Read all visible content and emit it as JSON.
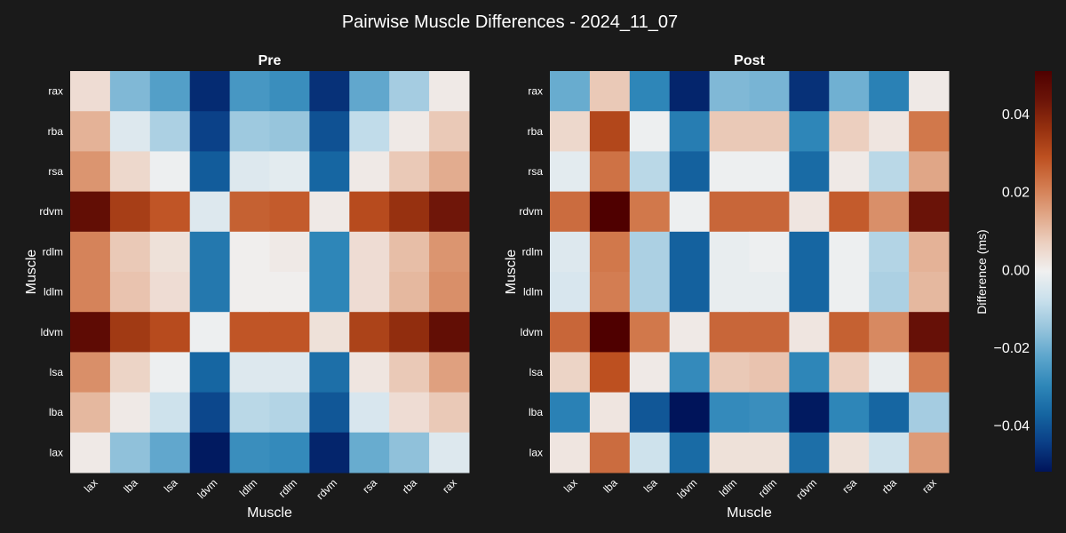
{
  "title": "Pairwise Muscle Differences - 2024_11_07",
  "colors": {
    "background": "#1a1a1a",
    "text": "#ffffff",
    "colormap": [
      "#00145a",
      "#0a3e86",
      "#1565a1",
      "#2e86b8",
      "#5ca5cc",
      "#96c4dc",
      "#c9e0ec",
      "#f0f0f0",
      "#ecd0c0",
      "#e0a585",
      "#d27a4e",
      "#bd5020",
      "#95300f",
      "#6b1408",
      "#4f0000"
    ]
  },
  "chart_data": {
    "type": "heatmap",
    "colorbar": {
      "label": "Difference (ms)",
      "range": [
        -0.052,
        0.051
      ],
      "ticks": [
        -0.04,
        -0.02,
        0.0,
        0.02,
        0.04
      ],
      "tick_labels": [
        "−0.04",
        "−0.02",
        "0.00",
        "0.02",
        "0.04"
      ]
    },
    "x_categories": [
      "lax",
      "lba",
      "lsa",
      "ldvm",
      "ldlm",
      "rdlm",
      "rdvm",
      "rsa",
      "rba",
      "rax"
    ],
    "y_categories": [
      "rax",
      "rba",
      "rsa",
      "rdvm",
      "rdlm",
      "ldlm",
      "ldvm",
      "lsa",
      "lba",
      "lax"
    ],
    "panels": [
      {
        "title": "Pre",
        "xlabel": "Muscle",
        "ylabel": "Muscle",
        "values": [
          [
            0.004,
            -0.018,
            -0.024,
            -0.048,
            -0.026,
            -0.028,
            -0.047,
            -0.022,
            -0.013,
            0.001
          ],
          [
            0.012,
            -0.004,
            -0.012,
            -0.044,
            -0.014,
            -0.015,
            -0.041,
            -0.009,
            0.001,
            0.008
          ],
          [
            0.017,
            0.005,
            -0.001,
            -0.039,
            -0.004,
            -0.003,
            -0.037,
            0.001,
            0.008,
            0.013
          ],
          [
            0.046,
            0.033,
            0.028,
            -0.004,
            0.026,
            0.027,
            0.001,
            0.03,
            0.036,
            0.043
          ],
          [
            0.02,
            0.008,
            0.003,
            -0.033,
            0.0,
            0.001,
            -0.03,
            0.004,
            0.01,
            0.017
          ],
          [
            0.02,
            0.009,
            0.004,
            -0.033,
            0.0,
            0.0,
            -0.03,
            0.004,
            0.011,
            0.018
          ],
          [
            0.047,
            0.034,
            0.03,
            -0.001,
            0.028,
            0.028,
            0.003,
            0.032,
            0.037,
            0.046
          ],
          [
            0.018,
            0.006,
            -0.001,
            -0.037,
            -0.004,
            -0.004,
            -0.035,
            0.002,
            0.008,
            0.015
          ],
          [
            0.011,
            0.001,
            -0.007,
            -0.043,
            -0.01,
            -0.011,
            -0.04,
            -0.005,
            0.004,
            0.008
          ],
          [
            0.001,
            -0.016,
            -0.022,
            -0.051,
            -0.028,
            -0.029,
            -0.049,
            -0.021,
            -0.016,
            -0.004
          ]
        ]
      },
      {
        "title": "Post",
        "xlabel": "Muscle",
        "ylabel": "Muscle",
        "values": [
          [
            -0.021,
            0.008,
            -0.03,
            -0.049,
            -0.018,
            -0.019,
            -0.047,
            -0.02,
            -0.031,
            0.001
          ],
          [
            0.005,
            0.031,
            -0.001,
            -0.032,
            0.008,
            0.008,
            -0.03,
            0.007,
            0.002,
            0.022
          ],
          [
            -0.003,
            0.023,
            -0.01,
            -0.038,
            -0.001,
            -0.001,
            -0.036,
            0.001,
            -0.01,
            0.014
          ],
          [
            0.024,
            0.051,
            0.022,
            -0.001,
            0.025,
            0.025,
            0.002,
            0.027,
            0.018,
            0.044
          ],
          [
            -0.004,
            0.022,
            -0.012,
            -0.038,
            -0.002,
            -0.001,
            -0.037,
            -0.001,
            -0.011,
            0.012
          ],
          [
            -0.005,
            0.021,
            -0.012,
            -0.038,
            -0.002,
            -0.002,
            -0.037,
            -0.001,
            -0.012,
            0.011
          ],
          [
            0.025,
            0.051,
            0.022,
            0.001,
            0.025,
            0.025,
            0.002,
            0.026,
            0.019,
            0.045
          ],
          [
            0.006,
            0.029,
            0.001,
            -0.029,
            0.008,
            0.009,
            -0.03,
            0.007,
            -0.002,
            0.021
          ],
          [
            -0.031,
            0.002,
            -0.04,
            -0.052,
            -0.029,
            -0.028,
            -0.051,
            -0.03,
            -0.037,
            -0.013
          ],
          [
            0.002,
            0.024,
            -0.007,
            -0.036,
            0.003,
            0.003,
            -0.035,
            0.003,
            -0.007,
            0.016
          ]
        ]
      }
    ]
  }
}
